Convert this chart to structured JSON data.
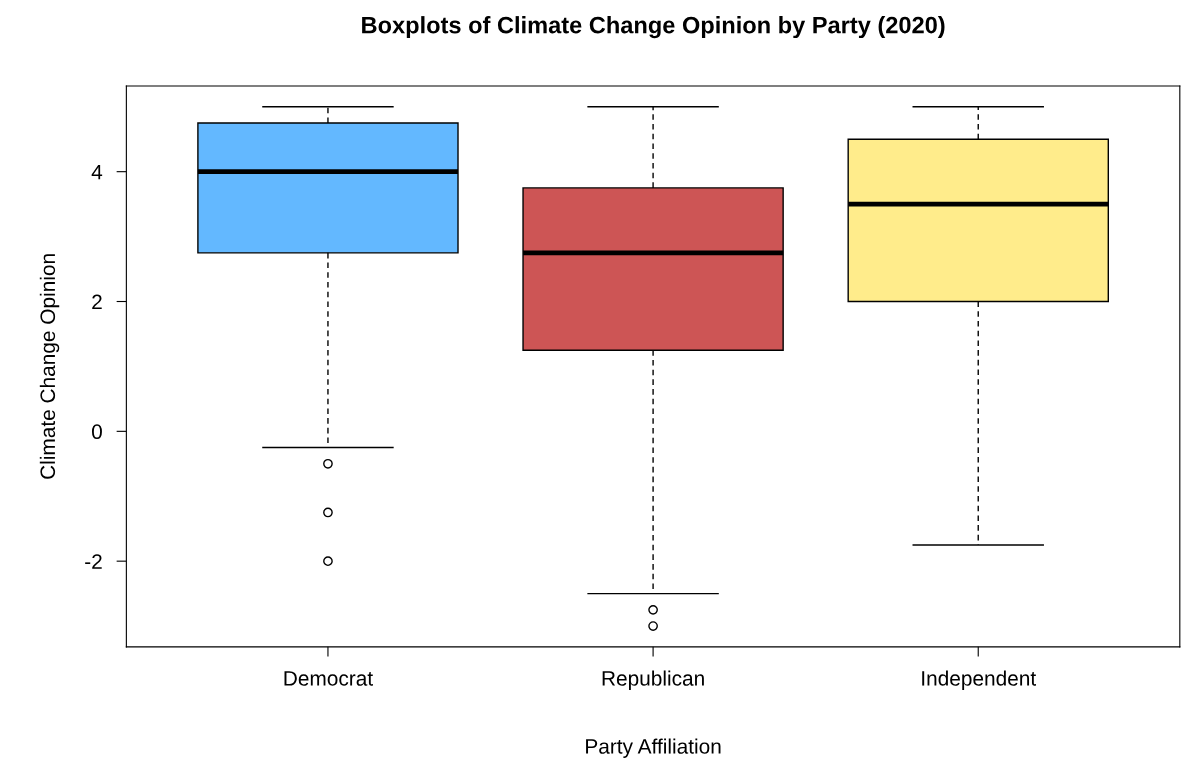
{
  "chart_data": {
    "type": "box",
    "title": "Boxplots of Climate Change Opinion by Party (2020)",
    "xlabel": "Party Affiliation",
    "ylabel": "Climate Change Opinion",
    "categories": [
      "Democrat",
      "Republican",
      "Independent"
    ],
    "colors": [
      "#63b8ff",
      "#cd5555",
      "#ffec8b"
    ],
    "boxes": [
      {
        "low": -0.25,
        "q1": 2.75,
        "median": 4,
        "q3": 4.75,
        "high": 5,
        "outliers": [
          -0.5,
          -1.25,
          -2
        ]
      },
      {
        "low": -2.5,
        "q1": 1.25,
        "median": 2.75,
        "q3": 3.75,
        "high": 5,
        "outliers": [
          -2.75,
          -3
        ]
      },
      {
        "low": -1.75,
        "q1": 2.0,
        "median": 3.5,
        "q3": 4.5,
        "high": 5
      }
    ],
    "ylim": [
      -3.32,
      5.32
    ],
    "yticks": [
      -2,
      0,
      2,
      4
    ],
    "grid": false,
    "legend": false
  }
}
